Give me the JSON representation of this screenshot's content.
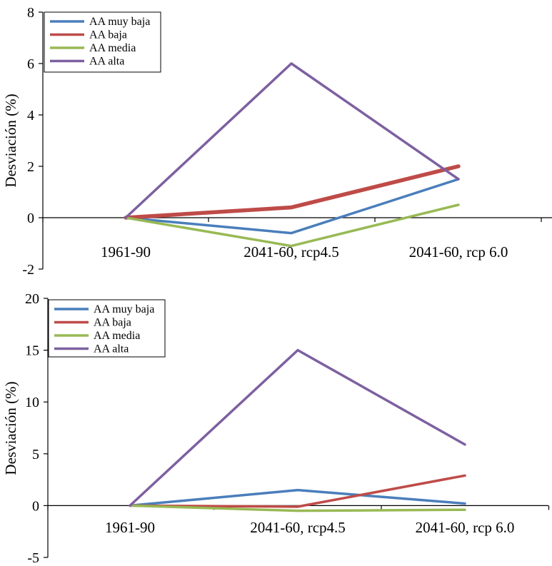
{
  "chart_data": [
    {
      "type": "line",
      "title": "",
      "xlabel": "",
      "ylabel": "Desviación (%)",
      "ylim": [
        -2,
        8
      ],
      "yticks": [
        -2,
        0,
        2,
        4,
        6,
        8
      ],
      "ytick_labels": [
        "-2",
        "0",
        "2",
        "4",
        "6",
        "8"
      ],
      "categories": [
        "1961-90",
        "2041-60, rcp4.5",
        "2041-60, rcp 6.0"
      ],
      "legend_position": "top-left",
      "series": [
        {
          "name": "AA muy baja",
          "color": "#4a7ebb",
          "values": [
            0,
            -0.6,
            1.5
          ]
        },
        {
          "name": "AA baja",
          "color": "#be4b48",
          "values": [
            0,
            0.4,
            2.0
          ]
        },
        {
          "name": "AA media",
          "color": "#98b954",
          "values": [
            0,
            -1.1,
            0.5
          ]
        },
        {
          "name": "AA alta",
          "color": "#7d60a0",
          "values": [
            0,
            6.0,
            1.5
          ]
        }
      ]
    },
    {
      "type": "line",
      "title": "",
      "xlabel": "",
      "ylabel": "Desviación (%)",
      "ylim": [
        -5,
        20
      ],
      "yticks": [
        -5,
        0,
        5,
        10,
        15,
        20
      ],
      "ytick_labels": [
        "-5",
        "0",
        "5",
        "10",
        "15",
        "20"
      ],
      "categories": [
        "1961-90",
        "2041-60, rcp4.5",
        "2041-60, rcp 6.0"
      ],
      "legend_position": "top-left",
      "series": [
        {
          "name": "AA muy baja",
          "color": "#4a7ebb",
          "values": [
            0,
            1.5,
            0.2
          ]
        },
        {
          "name": "AA baja",
          "color": "#be4b48",
          "values": [
            0,
            -0.1,
            2.9
          ]
        },
        {
          "name": "AA media",
          "color": "#98b954",
          "values": [
            0,
            -0.5,
            -0.4
          ]
        },
        {
          "name": "AA alta",
          "color": "#7d60a0",
          "values": [
            0,
            15.0,
            5.9
          ]
        }
      ]
    }
  ]
}
